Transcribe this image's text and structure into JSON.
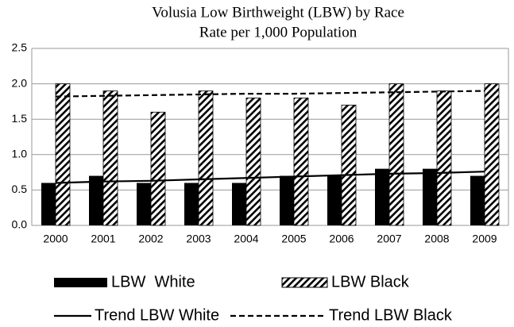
{
  "chart_data": {
    "type": "bar",
    "title": "Volusia Low Birthweight (LBW) by Race",
    "subtitle": "Rate per 1,000 Population",
    "categories": [
      "2000",
      "2001",
      "2002",
      "2003",
      "2004",
      "2005",
      "2006",
      "2007",
      "2008",
      "2009"
    ],
    "series": [
      {
        "name": "LBW  White",
        "type": "bar",
        "color": "#000000",
        "values": [
          0.6,
          0.7,
          0.6,
          0.6,
          0.6,
          0.7,
          0.7,
          0.8,
          0.8,
          0.7
        ]
      },
      {
        "name": "LBW Black",
        "type": "bar",
        "color": "#000000",
        "hatch": true,
        "values": [
          2.0,
          1.9,
          1.6,
          1.9,
          1.8,
          1.8,
          1.7,
          2.0,
          1.9,
          2.0
        ]
      },
      {
        "name": "Trend LBW White",
        "type": "line",
        "color": "#000000",
        "values": [
          0.6,
          0.62,
          0.63,
          0.65,
          0.67,
          0.69,
          0.71,
          0.73,
          0.74,
          0.76
        ]
      },
      {
        "name": "Trend LBW Black",
        "type": "line",
        "color": "#000000",
        "dashed": true,
        "values": [
          1.82,
          1.83,
          1.84,
          1.85,
          1.86,
          1.86,
          1.87,
          1.88,
          1.89,
          1.9
        ]
      }
    ],
    "ylim": [
      0,
      2.5
    ],
    "yticks": [
      {
        "value": 0,
        "label": "0.0"
      },
      {
        "value": 0.5,
        "label": "0.5"
      },
      {
        "value": 1,
        "label": "1.0"
      },
      {
        "value": 1.5,
        "label": "1.5"
      },
      {
        "value": 2,
        "label": "2.0"
      },
      {
        "value": 2.5,
        "label": "2.5"
      }
    ],
    "grid": true,
    "legend": "bottom"
  }
}
